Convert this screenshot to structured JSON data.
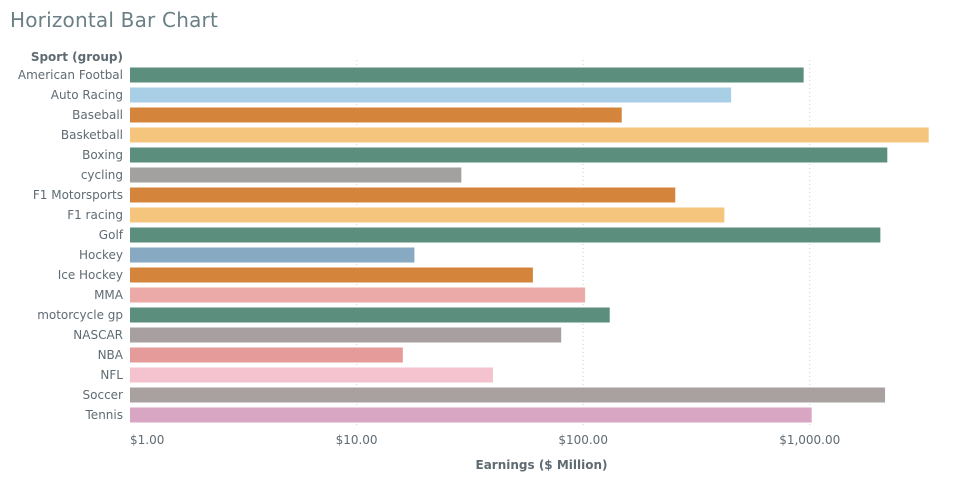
{
  "page": {
    "title": "Horizontal Bar Chart"
  },
  "chart_data": {
    "type": "bar",
    "orientation": "horizontal",
    "title": "Horizontal Bar Chart",
    "row_header": "Sport (group)",
    "xlabel": "Earnings ($ Million)",
    "x_scale": "log",
    "xlim": [
      1,
      3500
    ],
    "x_ticks": [
      {
        "value": 1,
        "label": "$1.00"
      },
      {
        "value": 10,
        "label": "$10.00"
      },
      {
        "value": 100,
        "label": "$100.00"
      },
      {
        "value": 1000,
        "label": "$1,000.00"
      }
    ],
    "grid": "vertical dotted",
    "categories": [
      "American Footbal",
      "Auto Racing",
      "Baseball",
      "Basketball",
      "Boxing",
      "cycling",
      "F1 Motorsports",
      "F1 racing",
      "Golf",
      "Hockey",
      "Ice Hockey",
      "MMA",
      "motorcycle gp",
      "NASCAR",
      "NBA",
      "NFL",
      "Soccer",
      "Tennis"
    ],
    "values": [
      940,
      450,
      148,
      3350,
      2200,
      29,
      255,
      420,
      2050,
      18,
      60,
      102,
      131,
      80,
      16,
      40,
      2150,
      1020
    ],
    "colors": [
      "#5b8e7d",
      "#a8cfe6",
      "#d4843b",
      "#f6c57d",
      "#5b8e7d",
      "#a3a1a0",
      "#d4843b",
      "#f6c57d",
      "#5b8e7d",
      "#87a9c2",
      "#d4843b",
      "#eba9a8",
      "#5b8e7d",
      "#a89fa0",
      "#e59b9a",
      "#f4c3cf",
      "#a9a1a0",
      "#d8a5c2"
    ]
  }
}
